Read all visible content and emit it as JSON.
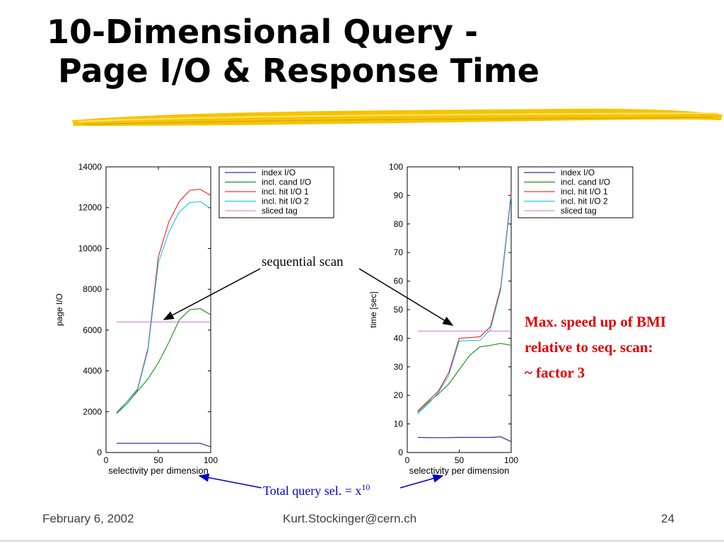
{
  "slide": {
    "title_line1": "10-Dimensional Query -",
    "title_line2": "Page I/O & Response Time",
    "annotation_sequential": "sequential scan",
    "annotation_total_query": "Total query sel. = x",
    "annotation_total_query_exp": "10",
    "note_line1": "Max. speed up of BMI",
    "note_line2": "relative to seq. scan:",
    "note_line3": "~ factor 3",
    "footer_date": "February 6, 2002",
    "footer_email": "Kurt.Stockinger@cern.ch",
    "footer_page": "24",
    "accent_yellow": "#f5c400",
    "note_color": "#e00000",
    "annotation_blue": "#0000c8"
  },
  "chart_data": [
    {
      "type": "line",
      "xlabel": "selectivity per dimension",
      "ylabel": "page I/O",
      "xlim": [
        0,
        100
      ],
      "ylim": [
        0,
        14000
      ],
      "xticks": [
        0,
        50,
        100
      ],
      "yticks": [
        0,
        2000,
        4000,
        6000,
        8000,
        10000,
        12000,
        14000
      ],
      "grid": false,
      "legend_position": "top-right",
      "x": [
        10,
        20,
        30,
        40,
        50,
        60,
        70,
        80,
        90,
        100
      ],
      "series": [
        {
          "name": "index I/O",
          "color": "#000080",
          "values": [
            450,
            450,
            450,
            450,
            450,
            450,
            450,
            450,
            450,
            280
          ]
        },
        {
          "name": "incl. cand I/O",
          "color": "#008000",
          "values": [
            1900,
            2400,
            3000,
            3600,
            4400,
            5400,
            6500,
            7000,
            7050,
            6750
          ]
        },
        {
          "name": "incl. hit I/O 1",
          "color": "#ff0000",
          "values": [
            1950,
            2500,
            3100,
            5100,
            9600,
            11300,
            12300,
            12850,
            12900,
            12600
          ]
        },
        {
          "name": "incl. hit I/O 2",
          "color": "#00c0ff",
          "values": [
            1900,
            2500,
            3050,
            5000,
            9300,
            10800,
            11800,
            12250,
            12300,
            11950
          ]
        },
        {
          "name": "sliced tag",
          "color": "#d070d0",
          "values": [
            6400,
            6400,
            6400,
            6400,
            6400,
            6400,
            6400,
            6400,
            6400,
            6400
          ]
        }
      ]
    },
    {
      "type": "line",
      "xlabel": "selectivity per dimension",
      "ylabel": "time [sec]",
      "xlim": [
        0,
        100
      ],
      "ylim": [
        0,
        100
      ],
      "xticks": [
        0,
        50,
        100
      ],
      "yticks": [
        0,
        10,
        20,
        30,
        40,
        50,
        60,
        70,
        80,
        90,
        100
      ],
      "grid": false,
      "legend_position": "top-right",
      "x": [
        10,
        20,
        30,
        40,
        50,
        60,
        70,
        80,
        90,
        100
      ],
      "series": [
        {
          "name": "index I/O",
          "color": "#000080",
          "values": [
            5.3,
            5.2,
            5.2,
            5.2,
            5.3,
            5.3,
            5.3,
            5.3,
            5.5,
            3.8
          ]
        },
        {
          "name": "incl. cand I/O",
          "color": "#008000",
          "values": [
            14,
            17.5,
            20.5,
            24,
            29,
            34,
            37,
            37.5,
            38.2,
            37.5
          ]
        },
        {
          "name": "incl. hit I/O 1",
          "color": "#ff0000",
          "values": [
            14.5,
            18,
            21.5,
            28,
            40,
            40.2,
            40.5,
            44,
            58,
            91
          ]
        },
        {
          "name": "incl. hit I/O 2",
          "color": "#00c0ff",
          "values": [
            13.5,
            17,
            21,
            27,
            39,
            39.2,
            39.3,
            43,
            57,
            90
          ]
        },
        {
          "name": "sliced tag",
          "color": "#d070d0",
          "values": [
            42.5,
            42.5,
            42.5,
            42.5,
            42.5,
            42.5,
            42.5,
            42.5,
            42.5,
            42.5
          ]
        }
      ]
    }
  ]
}
